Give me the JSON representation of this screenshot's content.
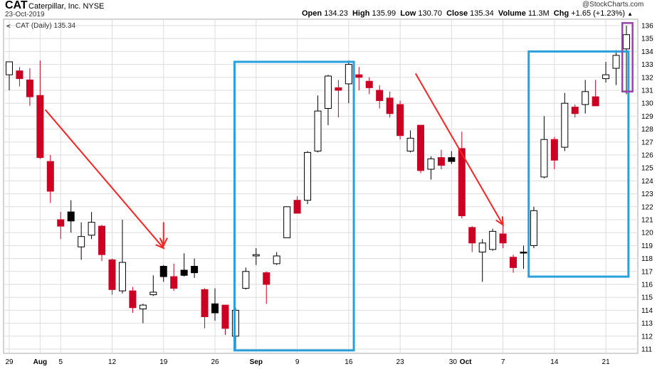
{
  "header": {
    "ticker": "CAT",
    "company": "Caterpillar, Inc.",
    "exchange": "NYSE",
    "date": "23-Oct-2019",
    "watermark": "@StockCharts.com",
    "open_label": "Open",
    "open": "134.23",
    "high_label": "High",
    "high": "135.99",
    "low_label": "Low",
    "low": "130.70",
    "close_label": "Close",
    "close": "135.34",
    "volume_label": "Volume",
    "volume": "11.3M",
    "chg_label": "Chg",
    "chg": "+1.65 (+1.23%)",
    "legend": "CAT (Daily) 135.34"
  },
  "colors": {
    "up": "#ffffff",
    "down": "#cc0022",
    "neutral": "#000000",
    "arrow": "#ff2222",
    "box": "#29a0dc",
    "last_box": "#9b42b0",
    "grid": "#dddddd"
  },
  "chart_data": {
    "type": "candlestick",
    "title": "CAT (Daily) 135.34",
    "ylim": [
      110.5,
      136.5
    ],
    "y_ticks": [
      111,
      112,
      113,
      114,
      115,
      116,
      117,
      118,
      119,
      120,
      121,
      122,
      123,
      124,
      125,
      126,
      127,
      128,
      129,
      130,
      131,
      132,
      133,
      134,
      135,
      136
    ],
    "x_tick_labels": [
      {
        "i": 0,
        "label": "29"
      },
      {
        "i": 3,
        "label": "Aug"
      },
      {
        "i": 5,
        "label": "5"
      },
      {
        "i": 10,
        "label": "12"
      },
      {
        "i": 15,
        "label": "19"
      },
      {
        "i": 20,
        "label": "26"
      },
      {
        "i": 24,
        "label": "Sep"
      },
      {
        "i": 28,
        "label": "9"
      },
      {
        "i": 33,
        "label": "16"
      },
      {
        "i": 38,
        "label": "23"
      },
      {
        "i": 43,
        "label": "30"
      },
      {
        "i": 44,
        "label": "Oct"
      },
      {
        "i": 48,
        "label": "7"
      },
      {
        "i": 53,
        "label": "14"
      },
      {
        "i": 58,
        "label": "21"
      }
    ],
    "candles": [
      {
        "o": 132.2,
        "h": 133.0,
        "l": 131.0,
        "c": 133.2,
        "dir": "up"
      },
      {
        "o": 132.5,
        "h": 132.8,
        "l": 131.3,
        "c": 131.9,
        "dir": "down"
      },
      {
        "o": 131.8,
        "h": 132.7,
        "l": 129.8,
        "c": 130.5,
        "dir": "down"
      },
      {
        "o": 130.6,
        "h": 133.3,
        "l": 125.7,
        "c": 125.8,
        "dir": "down"
      },
      {
        "o": 125.5,
        "h": 126.0,
        "l": 122.3,
        "c": 123.2,
        "dir": "down"
      },
      {
        "o": 121.0,
        "h": 121.6,
        "l": 119.5,
        "c": 120.5,
        "dir": "down"
      },
      {
        "o": 120.9,
        "h": 122.5,
        "l": 120.0,
        "c": 121.6,
        "dir": "flat"
      },
      {
        "o": 118.9,
        "h": 120.8,
        "l": 117.9,
        "c": 119.7,
        "dir": "up"
      },
      {
        "o": 119.8,
        "h": 121.6,
        "l": 119.5,
        "c": 120.8,
        "dir": "up"
      },
      {
        "o": 120.5,
        "h": 120.6,
        "l": 117.8,
        "c": 118.3,
        "dir": "down"
      },
      {
        "o": 117.9,
        "h": 118.0,
        "l": 115.2,
        "c": 115.6,
        "dir": "down"
      },
      {
        "o": 115.5,
        "h": 121.0,
        "l": 115.3,
        "c": 117.7,
        "dir": "up"
      },
      {
        "o": 115.5,
        "h": 115.8,
        "l": 113.8,
        "c": 114.2,
        "dir": "down"
      },
      {
        "o": 114.1,
        "h": 114.5,
        "l": 113.0,
        "c": 114.4,
        "dir": "up"
      },
      {
        "o": 115.2,
        "h": 116.7,
        "l": 115.1,
        "c": 115.4,
        "dir": "up"
      },
      {
        "o": 117.4,
        "h": 117.5,
        "l": 116.2,
        "c": 116.6,
        "dir": "flat"
      },
      {
        "o": 116.6,
        "h": 117.6,
        "l": 115.5,
        "c": 115.7,
        "dir": "down"
      },
      {
        "o": 116.7,
        "h": 118.4,
        "l": 116.6,
        "c": 117.1,
        "dir": "flat"
      },
      {
        "o": 117.4,
        "h": 118.0,
        "l": 116.5,
        "c": 116.9,
        "dir": "flat"
      },
      {
        "o": 115.6,
        "h": 115.7,
        "l": 112.6,
        "c": 113.5,
        "dir": "down"
      },
      {
        "o": 114.5,
        "h": 115.7,
        "l": 113.2,
        "c": 113.8,
        "dir": "flat"
      },
      {
        "o": 114.4,
        "h": 114.4,
        "l": 112.1,
        "c": 112.6,
        "dir": "down"
      },
      {
        "o": 112.0,
        "h": 114.2,
        "l": 111.0,
        "c": 114.0,
        "dir": "up"
      },
      {
        "o": 115.7,
        "h": 117.3,
        "l": 115.6,
        "c": 117.0,
        "dir": "up"
      },
      {
        "o": 118.3,
        "h": 118.8,
        "l": 117.5,
        "c": 118.2,
        "dir": "up"
      },
      {
        "o": 116.9,
        "h": 117.0,
        "l": 114.5,
        "c": 116.0,
        "dir": "down"
      },
      {
        "o": 117.6,
        "h": 118.5,
        "l": 117.5,
        "c": 118.2,
        "dir": "up"
      },
      {
        "o": 119.6,
        "h": 122.0,
        "l": 119.6,
        "c": 122.0,
        "dir": "up"
      },
      {
        "o": 122.5,
        "h": 122.8,
        "l": 121.5,
        "c": 121.5,
        "dir": "down"
      },
      {
        "o": 122.5,
        "h": 126.3,
        "l": 122.2,
        "c": 126.2,
        "dir": "up"
      },
      {
        "o": 126.3,
        "h": 130.6,
        "l": 126.2,
        "c": 129.4,
        "dir": "up"
      },
      {
        "o": 129.6,
        "h": 132.2,
        "l": 128.3,
        "c": 132.1,
        "dir": "up"
      },
      {
        "o": 131.2,
        "h": 131.8,
        "l": 128.9,
        "c": 131.0,
        "dir": "down"
      },
      {
        "o": 131.5,
        "h": 133.3,
        "l": 130.0,
        "c": 133.0,
        "dir": "up"
      },
      {
        "o": 132.2,
        "h": 132.8,
        "l": 131.0,
        "c": 132.0,
        "dir": "down"
      },
      {
        "o": 131.7,
        "h": 132.0,
        "l": 130.7,
        "c": 131.2,
        "dir": "down"
      },
      {
        "o": 131.0,
        "h": 131.4,
        "l": 129.6,
        "c": 130.2,
        "dir": "down"
      },
      {
        "o": 130.4,
        "h": 130.9,
        "l": 128.9,
        "c": 129.2,
        "dir": "down"
      },
      {
        "o": 129.9,
        "h": 130.2,
        "l": 127.2,
        "c": 127.5,
        "dir": "down"
      },
      {
        "o": 126.3,
        "h": 127.9,
        "l": 126.2,
        "c": 127.3,
        "dir": "up"
      },
      {
        "o": 128.3,
        "h": 128.3,
        "l": 124.6,
        "c": 124.8,
        "dir": "down"
      },
      {
        "o": 124.9,
        "h": 125.9,
        "l": 124.1,
        "c": 125.7,
        "dir": "up"
      },
      {
        "o": 125.8,
        "h": 126.4,
        "l": 124.9,
        "c": 125.2,
        "dir": "down"
      },
      {
        "o": 125.8,
        "h": 126.3,
        "l": 125.3,
        "c": 125.5,
        "dir": "flat"
      },
      {
        "o": 126.5,
        "h": 127.8,
        "l": 121.1,
        "c": 121.3,
        "dir": "down"
      },
      {
        "o": 120.4,
        "h": 120.5,
        "l": 118.5,
        "c": 119.2,
        "dir": "down"
      },
      {
        "o": 118.5,
        "h": 119.5,
        "l": 116.2,
        "c": 119.2,
        "dir": "up"
      },
      {
        "o": 118.7,
        "h": 120.3,
        "l": 118.6,
        "c": 120.1,
        "dir": "up"
      },
      {
        "o": 119.9,
        "h": 120.9,
        "l": 118.8,
        "c": 119.2,
        "dir": "down"
      },
      {
        "o": 118.1,
        "h": 118.3,
        "l": 116.9,
        "c": 117.3,
        "dir": "down"
      },
      {
        "o": 118.5,
        "h": 119.0,
        "l": 117.2,
        "c": 118.5,
        "dir": "flat"
      },
      {
        "o": 119.0,
        "h": 122.0,
        "l": 118.8,
        "c": 121.7,
        "dir": "up"
      },
      {
        "o": 124.3,
        "h": 129.0,
        "l": 124.2,
        "c": 127.2,
        "dir": "up"
      },
      {
        "o": 127.2,
        "h": 127.4,
        "l": 124.9,
        "c": 125.6,
        "dir": "down"
      },
      {
        "o": 126.6,
        "h": 130.8,
        "l": 126.3,
        "c": 130.0,
        "dir": "up"
      },
      {
        "o": 129.7,
        "h": 129.9,
        "l": 128.9,
        "c": 129.2,
        "dir": "down"
      },
      {
        "o": 129.9,
        "h": 131.8,
        "l": 129.2,
        "c": 130.9,
        "dir": "up"
      },
      {
        "o": 130.5,
        "h": 131.8,
        "l": 129.8,
        "c": 129.8,
        "dir": "down"
      },
      {
        "o": 131.9,
        "h": 133.2,
        "l": 131.6,
        "c": 132.2,
        "dir": "up"
      },
      {
        "o": 132.7,
        "h": 134.1,
        "l": 131.4,
        "c": 133.7,
        "dir": "up"
      },
      {
        "o": 134.2,
        "h": 136.0,
        "l": 130.7,
        "c": 135.3,
        "dir": "up"
      }
    ],
    "annotations": {
      "arrows": [
        {
          "from": [
            3.5,
            129.5
          ],
          "to": [
            15,
            118.8
          ]
        },
        {
          "from": [
            15,
            120.8
          ],
          "to": [
            15,
            119.0
          ]
        },
        {
          "from": [
            39.5,
            132.3
          ],
          "to": [
            48,
            120.6
          ]
        }
      ],
      "boxes": [
        {
          "i0": 21.9,
          "i1": 33.5,
          "y0": 110.9,
          "y1": 133.2,
          "color": "box"
        },
        {
          "i0": 50.5,
          "i1": 60.2,
          "y0": 116.6,
          "y1": 134.0,
          "color": "box"
        },
        {
          "i0": 59.6,
          "i1": 60.6,
          "y0": 130.9,
          "y1": 136.2,
          "color": "last_box"
        }
      ]
    }
  }
}
